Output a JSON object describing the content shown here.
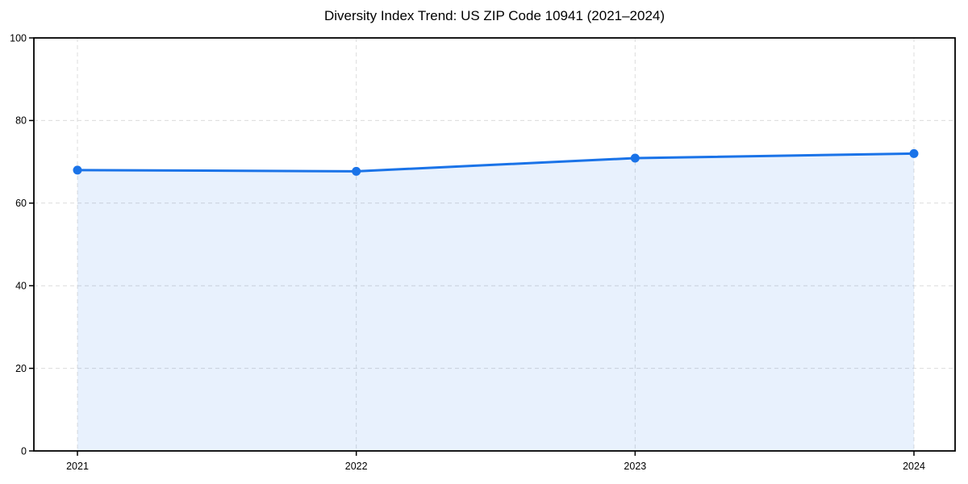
{
  "chart_data": {
    "type": "area",
    "title": "Diversity Index Trend: US ZIP Code 10941 (2021–2024)",
    "x": [
      2021,
      2022,
      2023,
      2024
    ],
    "series": [
      {
        "name": "Diversity Index",
        "values": [
          68,
          67.7,
          70.9,
          72
        ]
      }
    ],
    "xlabel": "",
    "ylabel": "",
    "ylim": [
      0,
      100
    ],
    "yticks": [
      0,
      20,
      40,
      60,
      80,
      100
    ],
    "grid": true,
    "grid_style": "dashed",
    "legend_position": "none",
    "line_color": "#1a73e8",
    "marker_color": "#1a73e8",
    "fill_color": "rgba(26,115,232,0.10)",
    "grid_color": "#dcdcdc",
    "spine_color": "#000000",
    "tick_label_color": "#000000",
    "background_color": "#ffffff"
  }
}
